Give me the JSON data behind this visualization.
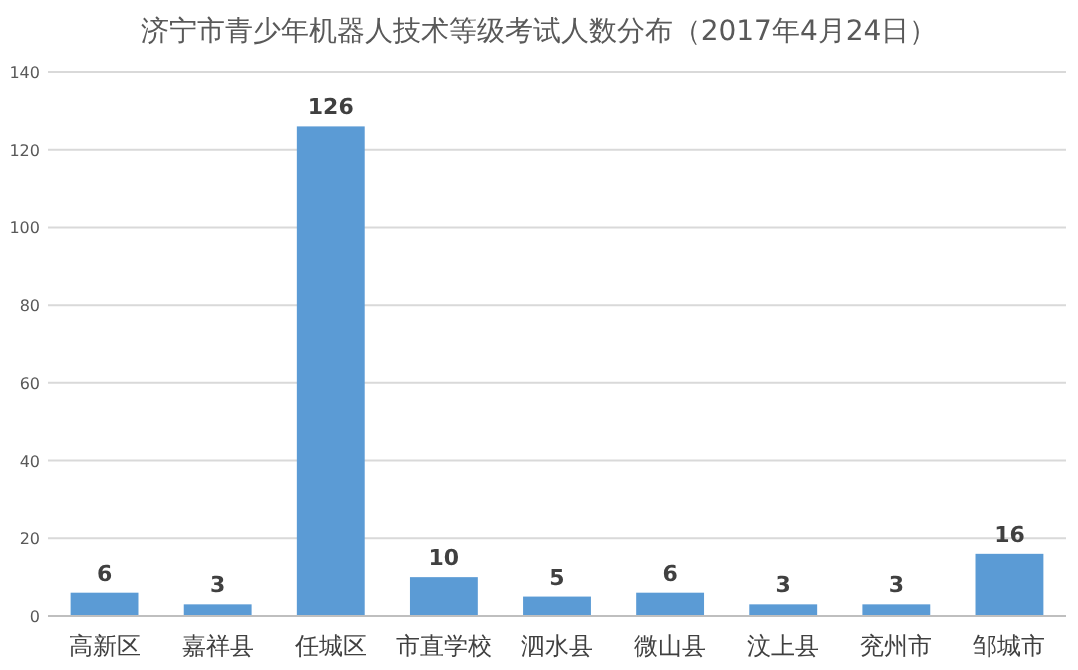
{
  "chart_data": {
    "type": "bar",
    "title": "济宁市青少年机器人技术等级考试人数分布（2017年4月24日）",
    "categories": [
      "高新区",
      "嘉祥县",
      "任城区",
      "市直学校",
      "泗水县",
      "微山县",
      "汶上县",
      "兖州市",
      "邹城市"
    ],
    "values": [
      6,
      3,
      126,
      10,
      5,
      6,
      3,
      3,
      16
    ],
    "color": "#5b9bd5",
    "ylim": [
      0,
      140
    ],
    "yticks": [
      0,
      20,
      40,
      60,
      80,
      100,
      120,
      140
    ],
    "grid": "y",
    "data_labels": true
  }
}
